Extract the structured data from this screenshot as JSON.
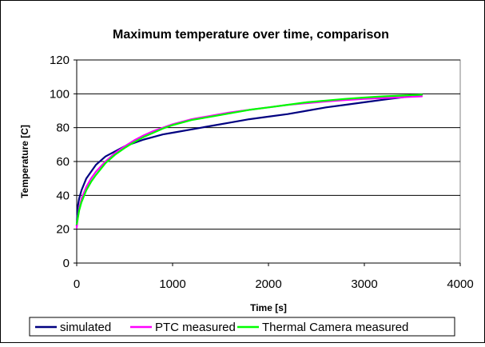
{
  "chart_data": {
    "type": "line",
    "title": "Maximum temperature over time, comparison",
    "xlabel": "Time [s]",
    "ylabel": "Temperature [C]",
    "xlim": [
      0,
      4000
    ],
    "ylim": [
      0,
      120
    ],
    "xticks": [
      "0",
      "1000",
      "2000",
      "3000",
      "4000"
    ],
    "yticks": [
      "0",
      "20",
      "40",
      "60",
      "80",
      "100",
      "120"
    ],
    "grid": "horizontal",
    "legend_position": "bottom",
    "series": [
      {
        "name": "simulated",
        "color": "#000080",
        "points": [
          [
            0,
            22
          ],
          [
            10,
            33
          ],
          [
            25,
            38
          ],
          [
            50,
            43
          ],
          [
            100,
            50
          ],
          [
            150,
            54
          ],
          [
            200,
            58
          ],
          [
            300,
            63
          ],
          [
            400,
            66
          ],
          [
            500,
            69
          ],
          [
            600,
            71
          ],
          [
            700,
            73
          ],
          [
            800,
            74.5
          ],
          [
            900,
            76
          ],
          [
            1000,
            77
          ],
          [
            1200,
            79
          ],
          [
            1400,
            81
          ],
          [
            1600,
            83
          ],
          [
            1800,
            85
          ],
          [
            2000,
            86.5
          ],
          [
            2200,
            88
          ],
          [
            2400,
            90
          ],
          [
            2600,
            92
          ],
          [
            2800,
            93.5
          ],
          [
            3000,
            95
          ],
          [
            3200,
            96.5
          ],
          [
            3400,
            98
          ],
          [
            3600,
            99.5
          ]
        ]
      },
      {
        "name": "PTC measured",
        "color": "#FF00FF",
        "points": [
          [
            0,
            21
          ],
          [
            10,
            26
          ],
          [
            25,
            32
          ],
          [
            50,
            38
          ],
          [
            100,
            45
          ],
          [
            150,
            50
          ],
          [
            200,
            54
          ],
          [
            300,
            60
          ],
          [
            400,
            65
          ],
          [
            500,
            69
          ],
          [
            600,
            72.5
          ],
          [
            700,
            75.5
          ],
          [
            800,
            78
          ],
          [
            900,
            80
          ],
          [
            1000,
            82
          ],
          [
            1200,
            85
          ],
          [
            1400,
            87
          ],
          [
            1600,
            89
          ],
          [
            1800,
            90.5
          ],
          [
            2000,
            92
          ],
          [
            2200,
            93.5
          ],
          [
            2400,
            94.5
          ],
          [
            2600,
            95.5
          ],
          [
            2800,
            96.3
          ],
          [
            3000,
            97
          ],
          [
            3200,
            97.5
          ],
          [
            3400,
            98
          ],
          [
            3600,
            98.5
          ]
        ]
      },
      {
        "name": "Thermal Camera measured",
        "color": "#00FF00",
        "points": [
          [
            0,
            23
          ],
          [
            10,
            26
          ],
          [
            25,
            31
          ],
          [
            50,
            36
          ],
          [
            100,
            43
          ],
          [
            150,
            48
          ],
          [
            200,
            52
          ],
          [
            300,
            59
          ],
          [
            400,
            64
          ],
          [
            500,
            68
          ],
          [
            600,
            71.5
          ],
          [
            700,
            74.5
          ],
          [
            800,
            77
          ],
          [
            900,
            79.5
          ],
          [
            1000,
            81.5
          ],
          [
            1200,
            84.5
          ],
          [
            1400,
            86.5
          ],
          [
            1600,
            88.5
          ],
          [
            1800,
            90.5
          ],
          [
            2000,
            92
          ],
          [
            2200,
            93.5
          ],
          [
            2400,
            95
          ],
          [
            2600,
            96
          ],
          [
            2800,
            97
          ],
          [
            3000,
            97.8
          ],
          [
            3200,
            98.5
          ],
          [
            3400,
            99
          ],
          [
            3600,
            99.5
          ]
        ]
      }
    ]
  }
}
